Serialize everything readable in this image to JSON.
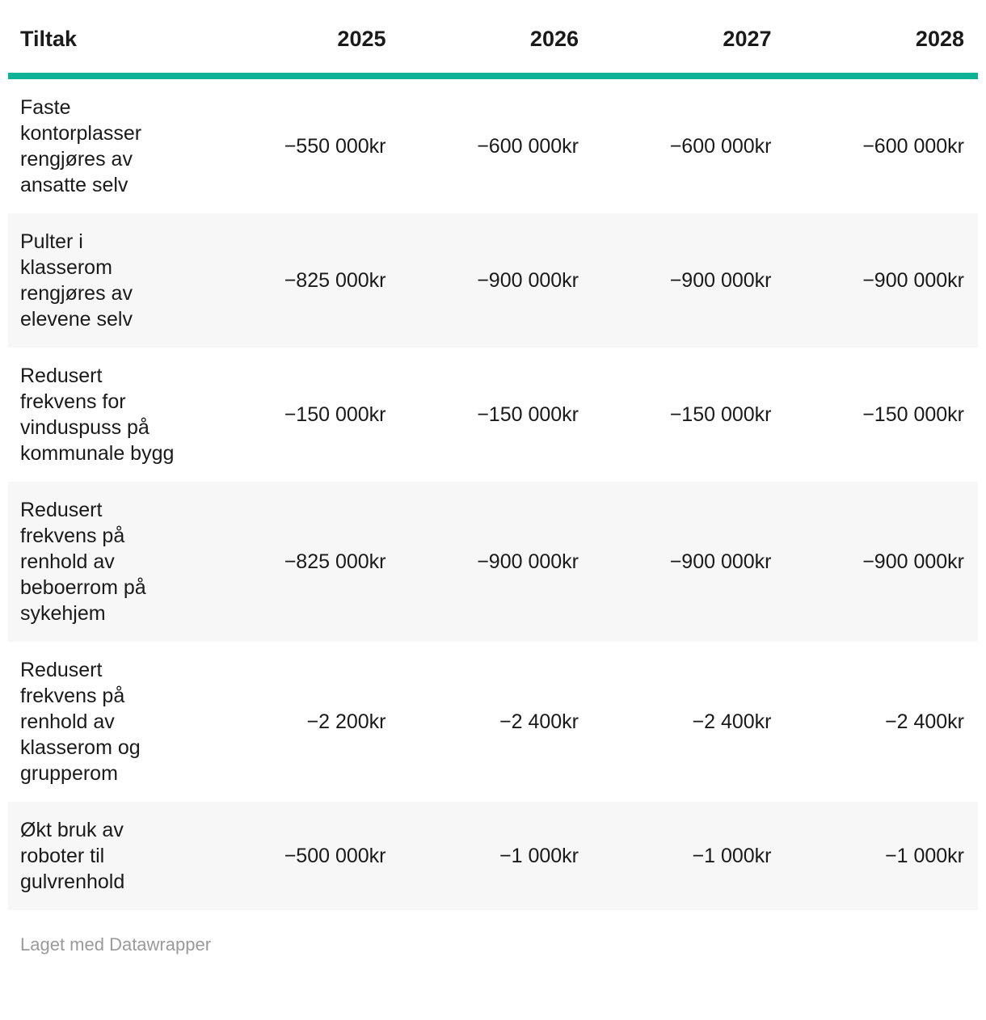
{
  "colors": {
    "accent": "#0db394",
    "row_alt": "#f7f7f7",
    "text": "#1a1a1a",
    "footer_text": "#9a9a9a"
  },
  "table": {
    "columns": [
      {
        "label": "Tiltak",
        "align": "left"
      },
      {
        "label": "2025",
        "align": "right"
      },
      {
        "label": "2026",
        "align": "right"
      },
      {
        "label": "2027",
        "align": "right"
      },
      {
        "label": "2028",
        "align": "right"
      }
    ],
    "rows": [
      {
        "tiltak": "Faste kontorplasser rengjøres av ansatte selv",
        "values": [
          "−550 000kr",
          "−600 000kr",
          "−600 000kr",
          "−600 000kr"
        ]
      },
      {
        "tiltak": "Pulter i klasserom rengjøres av elevene selv",
        "values": [
          "−825 000kr",
          "−900 000kr",
          "−900 000kr",
          "−900 000kr"
        ]
      },
      {
        "tiltak": "Redusert frekvens for vinduspuss på kommunale bygg",
        "values": [
          "−150 000kr",
          "−150 000kr",
          "−150 000kr",
          "−150 000kr"
        ]
      },
      {
        "tiltak": "Redusert frekvens på renhold av beboerrom på sykehjem",
        "values": [
          "−825 000kr",
          "−900 000kr",
          "−900 000kr",
          "−900 000kr"
        ]
      },
      {
        "tiltak": "Redusert frekvens på renhold av klasserom og grupperom",
        "values": [
          "−2 200kr",
          "−2 400kr",
          "−2 400kr",
          "−2 400kr"
        ]
      },
      {
        "tiltak": "Økt bruk av roboter til gulvrenhold",
        "values": [
          "−500 000kr",
          "−1 000kr",
          "−1 000kr",
          "−1 000kr"
        ]
      }
    ]
  },
  "footer": {
    "attribution": "Laget med Datawrapper"
  },
  "chart_data": {
    "type": "table",
    "title": "",
    "columns": [
      "Tiltak",
      "2025",
      "2026",
      "2027",
      "2028"
    ],
    "unit": "kr",
    "rows": [
      {
        "tiltak": "Faste kontorplasser rengjøres av ansatte selv",
        "values": [
          -550000,
          -600000,
          -600000,
          -600000
        ]
      },
      {
        "tiltak": "Pulter i klasserom rengjøres av elevene selv",
        "values": [
          -825000,
          -900000,
          -900000,
          -900000
        ]
      },
      {
        "tiltak": "Redusert frekvens for vinduspuss på kommunale bygg",
        "values": [
          -150000,
          -150000,
          -150000,
          -150000
        ]
      },
      {
        "tiltak": "Redusert frekvens på renhold av beboerrom på sykehjem",
        "values": [
          -825000,
          -900000,
          -900000,
          -900000
        ]
      },
      {
        "tiltak": "Redusert frekvens på renhold av klasserom og grupperom",
        "values": [
          -2200,
          -2400,
          -2400,
          -2400
        ]
      },
      {
        "tiltak": "Økt bruk av roboter til gulvrenhold",
        "values": [
          -500000,
          -1000,
          -1000,
          -1000
        ]
      }
    ]
  }
}
